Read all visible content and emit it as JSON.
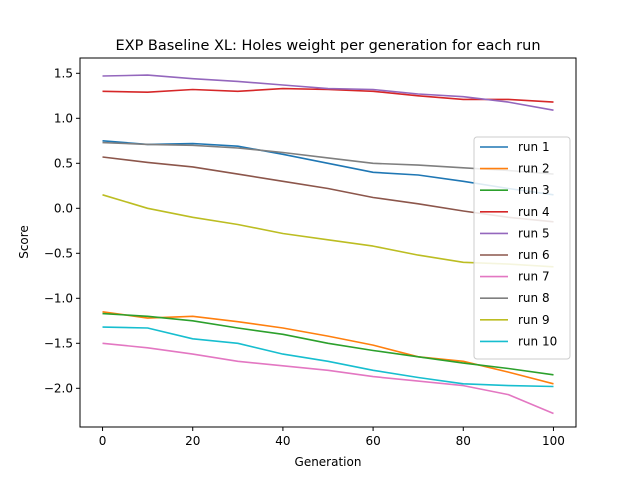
{
  "chart_data": {
    "type": "line",
    "title": "EXP Baseline XL: Holes weight per generation for each run",
    "xlabel": "Generation",
    "ylabel": "Score",
    "xlim": [
      -5,
      105
    ],
    "ylim": [
      -2.43,
      1.67
    ],
    "xticks": [
      0,
      20,
      40,
      60,
      80,
      100
    ],
    "yticks": [
      -2.0,
      -1.5,
      -1.0,
      -0.5,
      0.0,
      0.5,
      1.0,
      1.5
    ],
    "xtick_labels": [
      "0",
      "20",
      "40",
      "60",
      "80",
      "100"
    ],
    "ytick_labels": [
      "−2.0",
      "−1.5",
      "−1.0",
      "−0.5",
      "0.0",
      "0.5",
      "1.0",
      "1.5"
    ],
    "grid": false,
    "legend_position": "center-right",
    "x": [
      0,
      10,
      20,
      30,
      40,
      50,
      60,
      70,
      80,
      90,
      100
    ],
    "series": [
      {
        "name": "run 1",
        "color": "#1f77b4",
        "values": [
          0.75,
          0.71,
          0.72,
          0.69,
          0.6,
          0.5,
          0.4,
          0.37,
          0.3,
          0.22,
          0.15
        ]
      },
      {
        "name": "run 2",
        "color": "#ff7f0e",
        "values": [
          -1.15,
          -1.22,
          -1.2,
          -1.26,
          -1.33,
          -1.42,
          -1.52,
          -1.65,
          -1.7,
          -1.82,
          -1.95
        ]
      },
      {
        "name": "run 3",
        "color": "#2ca02c",
        "values": [
          -1.17,
          -1.2,
          -1.25,
          -1.33,
          -1.4,
          -1.5,
          -1.58,
          -1.65,
          -1.72,
          -1.78,
          -1.85
        ]
      },
      {
        "name": "run 4",
        "color": "#d62728",
        "values": [
          1.3,
          1.29,
          1.32,
          1.3,
          1.33,
          1.32,
          1.3,
          1.25,
          1.21,
          1.21,
          1.18
        ]
      },
      {
        "name": "run 5",
        "color": "#9467bd",
        "values": [
          1.47,
          1.48,
          1.44,
          1.41,
          1.37,
          1.33,
          1.32,
          1.27,
          1.24,
          1.18,
          1.09
        ]
      },
      {
        "name": "run 6",
        "color": "#8c564b",
        "values": [
          0.57,
          0.51,
          0.46,
          0.38,
          0.3,
          0.22,
          0.12,
          0.05,
          -0.03,
          -0.1,
          -0.15
        ]
      },
      {
        "name": "run 7",
        "color": "#e377c2",
        "values": [
          -1.5,
          -1.55,
          -1.62,
          -1.7,
          -1.75,
          -1.8,
          -1.87,
          -1.92,
          -1.97,
          -2.07,
          -2.28
        ]
      },
      {
        "name": "run 8",
        "color": "#7f7f7f",
        "values": [
          0.73,
          0.71,
          0.7,
          0.67,
          0.62,
          0.56,
          0.5,
          0.48,
          0.45,
          0.42,
          0.38
        ]
      },
      {
        "name": "run 9",
        "color": "#bcbd22",
        "values": [
          0.15,
          0.0,
          -0.1,
          -0.18,
          -0.28,
          -0.35,
          -0.42,
          -0.52,
          -0.6,
          -0.62,
          -0.65
        ]
      },
      {
        "name": "run 10",
        "color": "#17becf",
        "values": [
          -1.32,
          -1.33,
          -1.45,
          -1.5,
          -1.62,
          -1.7,
          -1.8,
          -1.88,
          -1.95,
          -1.97,
          -1.98
        ]
      }
    ]
  }
}
